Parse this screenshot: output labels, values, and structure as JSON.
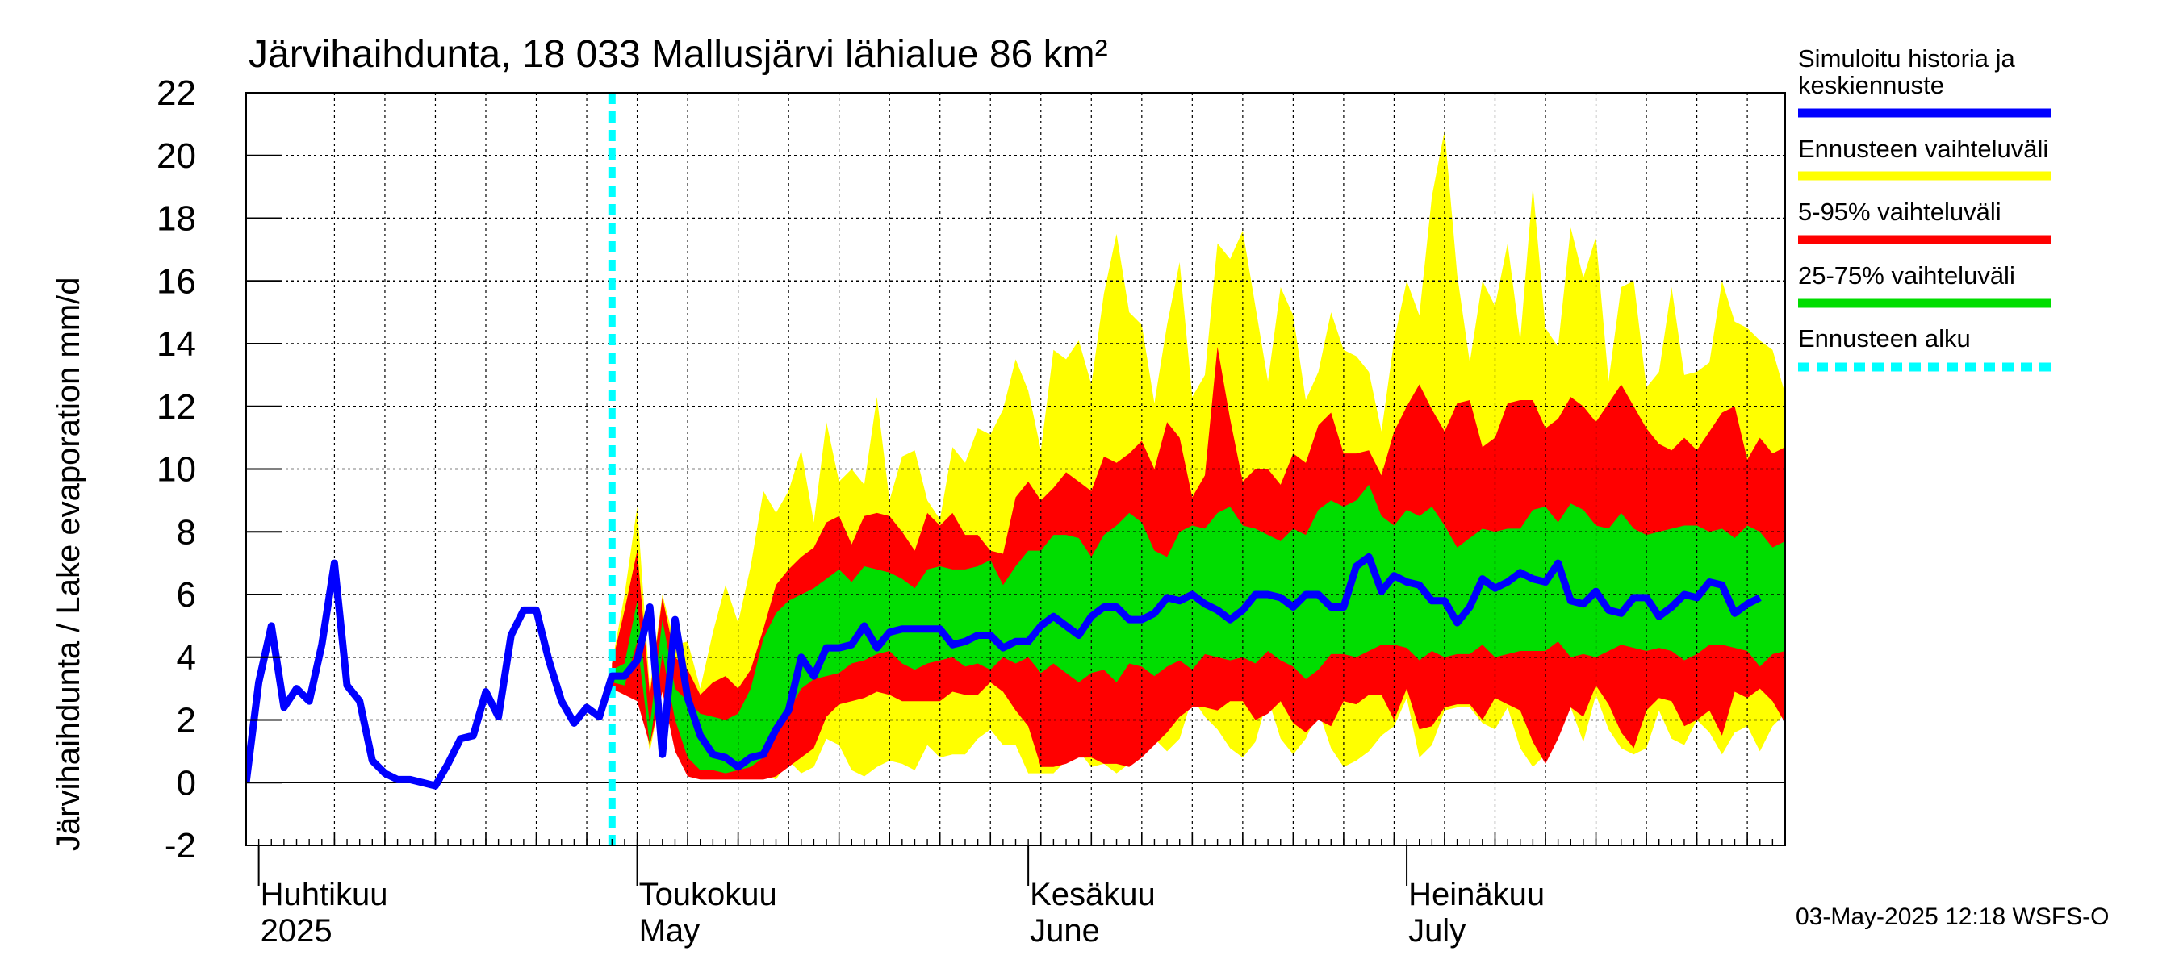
{
  "chart_data": {
    "type": "area",
    "title": "Järvihaihdunta, 18 033 Mallusjärvi lähialue 86 km²",
    "ylabel": "Järvihaihdunta / Lake evaporation   mm/d",
    "ylim": [
      -2,
      22
    ],
    "yticks": [
      -2,
      0,
      2,
      4,
      6,
      8,
      10,
      12,
      14,
      16,
      18,
      20,
      22
    ],
    "xlim": [
      "2025-03-31",
      "2025-07-31"
    ],
    "x_month_labels": [
      {
        "fi": "Huhtikuu",
        "en": "2025",
        "date": "2025-04-01"
      },
      {
        "fi": "Toukokuu",
        "en": "May",
        "date": "2025-05-01"
      },
      {
        "fi": "Kesäkuu",
        "en": "June",
        "date": "2025-06-01"
      },
      {
        "fi": "Heinäkuu",
        "en": "July",
        "date": "2025-07-01"
      }
    ],
    "forecast_start": "2025-04-29",
    "grid": true,
    "legend_position": "right",
    "timestamp": "03-May-2025 12:18 WSFS-O",
    "series": [
      {
        "name": "Simuloitu historia ja keskiennuste",
        "color": "#0000ff",
        "kind": "line",
        "x_start": "2025-03-31",
        "step_days": 1,
        "values": [
          0.0,
          3.2,
          5.0,
          2.4,
          3.0,
          2.6,
          4.4,
          7.0,
          3.1,
          2.6,
          0.7,
          0.3,
          0.1,
          0.1,
          0.0,
          -0.1,
          0.6,
          1.4,
          1.5,
          2.9,
          2.1,
          4.7,
          5.5,
          5.5,
          3.9,
          2.6,
          1.9,
          2.4,
          2.1,
          3.4,
          3.4,
          3.9,
          5.6,
          0.9,
          5.2,
          2.7,
          1.5,
          0.9,
          0.8,
          0.5,
          0.8,
          0.9,
          1.7,
          2.3,
          4.0,
          3.4,
          4.3,
          4.3,
          4.4,
          5.0,
          4.3,
          4.8,
          4.9,
          4.9,
          4.9,
          4.9,
          4.4,
          4.5,
          4.7,
          4.7,
          4.3,
          4.5,
          4.5,
          5.0,
          5.3,
          5.0,
          4.7,
          5.3,
          5.6,
          5.6,
          5.2,
          5.2,
          5.4,
          5.9,
          5.8,
          6.0,
          5.7,
          5.5,
          5.2,
          5.5,
          6.0,
          6.0,
          5.9,
          5.6,
          6.0,
          6.0,
          5.6,
          5.6,
          6.9,
          7.2,
          6.1,
          6.6,
          6.4,
          6.3,
          5.8,
          5.8,
          5.1,
          5.6,
          6.5,
          6.2,
          6.4,
          6.7,
          6.5,
          6.4,
          7.0,
          5.8,
          5.7,
          6.1,
          5.5,
          5.4,
          5.9,
          5.9,
          5.3,
          5.6,
          6.0,
          5.9,
          6.4,
          6.3,
          5.4,
          5.7,
          5.9
        ]
      },
      {
        "name": "Ennusteen vaihteluväli",
        "color": "#ffff00",
        "kind": "band",
        "x_start": "2025-04-29",
        "step_days": 1,
        "upper": [
          3.8,
          6.0,
          8.8,
          3.0,
          6.0,
          4.4,
          4.5,
          3.0,
          4.8,
          6.3,
          5.1,
          6.9,
          9.3,
          8.6,
          9.3,
          10.6,
          8.3,
          11.5,
          9.6,
          10.0,
          9.5,
          12.3,
          9.0,
          10.4,
          10.6,
          9.0,
          8.4,
          10.7,
          10.2,
          11.3,
          11.1,
          11.9,
          13.5,
          12.5,
          10.6,
          13.8,
          13.5,
          14.1,
          12.7,
          15.6,
          17.5,
          15.0,
          14.6,
          12.1,
          14.6,
          16.6,
          12.3,
          13.0,
          17.2,
          16.7,
          17.6,
          15.2,
          12.8,
          15.8,
          14.9,
          12.2,
          13.1,
          15.0,
          13.8,
          13.6,
          13.1,
          11.2,
          14.1,
          16.0,
          14.9,
          18.7,
          20.8,
          16.2,
          13.4,
          16.0,
          15.2,
          17.2,
          14.1,
          19.0,
          14.5,
          13.9,
          17.7,
          16.1,
          17.4,
          12.8,
          15.8,
          16.0,
          12.6,
          13.1,
          15.8,
          13.0,
          13.1,
          13.4,
          16.0,
          14.7,
          14.5,
          14.1,
          13.8,
          12.4,
          17.6,
          13.1
        ],
        "lower": [
          3.0,
          2.8,
          3.5,
          1.0,
          3.0,
          1.5,
          0.5,
          0.1,
          0.2,
          0.3,
          0.1,
          0.3,
          0.3,
          0.1,
          0.7,
          0.3,
          0.5,
          1.4,
          1.2,
          0.4,
          0.2,
          0.5,
          0.7,
          0.6,
          0.4,
          1.2,
          0.8,
          0.9,
          0.9,
          1.4,
          1.7,
          1.2,
          1.2,
          0.3,
          0.3,
          0.3,
          0.7,
          1.0,
          0.5,
          0.6,
          0.3,
          0.6,
          1.3,
          1.4,
          1.0,
          1.4,
          2.7,
          2.1,
          1.7,
          1.1,
          0.8,
          1.3,
          2.7,
          1.4,
          0.9,
          1.4,
          2.3,
          1.1,
          0.5,
          0.7,
          1.0,
          1.5,
          1.8,
          2.7,
          0.8,
          1.2,
          2.3,
          2.4,
          2.4,
          1.9,
          1.7,
          2.4,
          1.1,
          0.5,
          0.9,
          1.6,
          2.4,
          1.3,
          2.8,
          1.7,
          1.1,
          0.9,
          1.1,
          2.3,
          1.4,
          1.2,
          2.0,
          1.6,
          0.9,
          1.6,
          1.8,
          1.0,
          1.8,
          2.2,
          1.0,
          1.8
        ]
      },
      {
        "name": "5-95% vaihteluväli",
        "color": "#ff0000",
        "kind": "band",
        "x_start": "2025-04-29",
        "step_days": 1,
        "upper": [
          3.8,
          5.5,
          7.4,
          2.8,
          5.9,
          4.0,
          3.6,
          2.8,
          3.2,
          3.4,
          3.0,
          3.6,
          4.9,
          6.3,
          6.8,
          7.2,
          7.5,
          8.3,
          8.5,
          7.6,
          8.5,
          8.6,
          8.5,
          8.0,
          7.4,
          8.6,
          8.2,
          8.6,
          7.9,
          7.9,
          7.4,
          7.3,
          9.1,
          9.6,
          9.0,
          9.4,
          9.9,
          9.6,
          9.3,
          10.4,
          10.2,
          10.5,
          10.9,
          10.0,
          11.5,
          11.0,
          9.1,
          9.8,
          13.9,
          11.6,
          9.6,
          10.0,
          10.0,
          9.5,
          10.5,
          10.2,
          11.4,
          11.8,
          10.5,
          10.5,
          10.6,
          9.8,
          11.2,
          12.0,
          12.7,
          11.9,
          11.2,
          12.1,
          12.2,
          10.7,
          11.0,
          12.1,
          12.2,
          12.2,
          11.3,
          11.6,
          12.3,
          12.0,
          11.5,
          12.1,
          12.7,
          12.0,
          11.3,
          10.8,
          10.6,
          11.0,
          10.6,
          11.2,
          11.8,
          12.0,
          10.3,
          11.0,
          10.5,
          10.7,
          11.1,
          10.9
        ],
        "lower": [
          3.0,
          2.8,
          2.6,
          1.2,
          2.9,
          1.0,
          0.2,
          0.1,
          0.1,
          0.1,
          0.1,
          0.1,
          0.1,
          0.2,
          0.5,
          0.8,
          1.1,
          2.1,
          2.5,
          2.6,
          2.7,
          2.9,
          2.8,
          2.6,
          2.6,
          2.6,
          2.6,
          2.9,
          2.8,
          2.8,
          3.2,
          2.9,
          2.3,
          1.8,
          0.5,
          0.5,
          0.6,
          0.8,
          0.8,
          0.6,
          0.6,
          0.5,
          0.8,
          1.2,
          1.6,
          2.1,
          2.4,
          2.4,
          2.3,
          2.6,
          2.6,
          2.0,
          2.2,
          2.6,
          1.9,
          1.6,
          2.0,
          1.8,
          2.6,
          2.5,
          2.8,
          2.8,
          2.0,
          3.0,
          1.7,
          1.8,
          2.4,
          2.5,
          2.5,
          2.0,
          2.7,
          2.5,
          2.3,
          1.3,
          0.6,
          1.4,
          2.4,
          2.1,
          3.1,
          2.5,
          1.6,
          1.1,
          2.3,
          2.7,
          2.6,
          1.8,
          2.0,
          2.3,
          1.5,
          2.9,
          2.7,
          3.0,
          2.6,
          1.9,
          2.4,
          1.8
        ]
      },
      {
        "name": "25-75% vaihteluväli",
        "color": "#00dd00",
        "kind": "band",
        "x_start": "2025-04-29",
        "step_days": 1,
        "upper": [
          3.6,
          3.8,
          5.8,
          1.8,
          5.2,
          3.0,
          2.6,
          2.2,
          2.1,
          2.0,
          2.2,
          3.0,
          4.6,
          5.4,
          5.8,
          6.0,
          6.2,
          6.5,
          6.8,
          6.4,
          6.9,
          6.8,
          6.7,
          6.5,
          6.2,
          6.8,
          6.9,
          6.8,
          6.8,
          6.9,
          7.1,
          6.3,
          6.9,
          7.4,
          7.4,
          7.9,
          7.9,
          7.8,
          7.2,
          7.9,
          8.2,
          8.6,
          8.3,
          7.4,
          7.2,
          8.0,
          8.2,
          8.1,
          8.6,
          8.8,
          8.2,
          8.1,
          7.9,
          7.7,
          8.1,
          7.9,
          8.7,
          9.0,
          8.8,
          9.0,
          9.5,
          8.5,
          8.2,
          8.7,
          8.5,
          8.8,
          8.2,
          7.5,
          7.8,
          8.1,
          8.0,
          8.1,
          8.1,
          8.7,
          8.8,
          8.3,
          8.9,
          8.7,
          8.2,
          8.1,
          8.6,
          8.1,
          7.9,
          8.0,
          8.1,
          8.2,
          8.2,
          8.0,
          8.1,
          7.8,
          8.2,
          8.0,
          7.5,
          7.7,
          7.7,
          7.5
        ],
        "lower": [
          3.2,
          3.1,
          4.5,
          1.2,
          4.1,
          2.0,
          0.8,
          0.4,
          0.4,
          0.3,
          0.4,
          0.5,
          0.8,
          1.5,
          2.3,
          3.0,
          3.3,
          3.4,
          3.5,
          3.8,
          3.9,
          4.1,
          4.2,
          3.8,
          3.6,
          3.8,
          3.9,
          4.0,
          3.7,
          3.8,
          3.6,
          4.0,
          3.8,
          4.0,
          3.5,
          3.8,
          3.5,
          3.2,
          3.5,
          3.6,
          3.2,
          3.8,
          3.7,
          3.4,
          3.7,
          3.9,
          3.6,
          4.1,
          4.0,
          3.9,
          4.0,
          3.8,
          4.2,
          3.9,
          3.7,
          3.3,
          3.6,
          4.1,
          4.1,
          4.0,
          4.2,
          4.4,
          4.4,
          4.3,
          3.9,
          4.2,
          4.0,
          4.1,
          4.1,
          4.4,
          4.0,
          4.1,
          4.2,
          4.2,
          4.2,
          4.5,
          4.0,
          4.1,
          4.0,
          4.2,
          4.4,
          4.3,
          4.2,
          4.3,
          4.2,
          3.9,
          4.1,
          4.4,
          4.4,
          4.3,
          4.2,
          3.7,
          4.1,
          4.2,
          4.2,
          4.1
        ]
      },
      {
        "name": "Ennusteen alku",
        "color": "#00ffff",
        "kind": "vline",
        "x": "2025-04-29"
      }
    ]
  }
}
